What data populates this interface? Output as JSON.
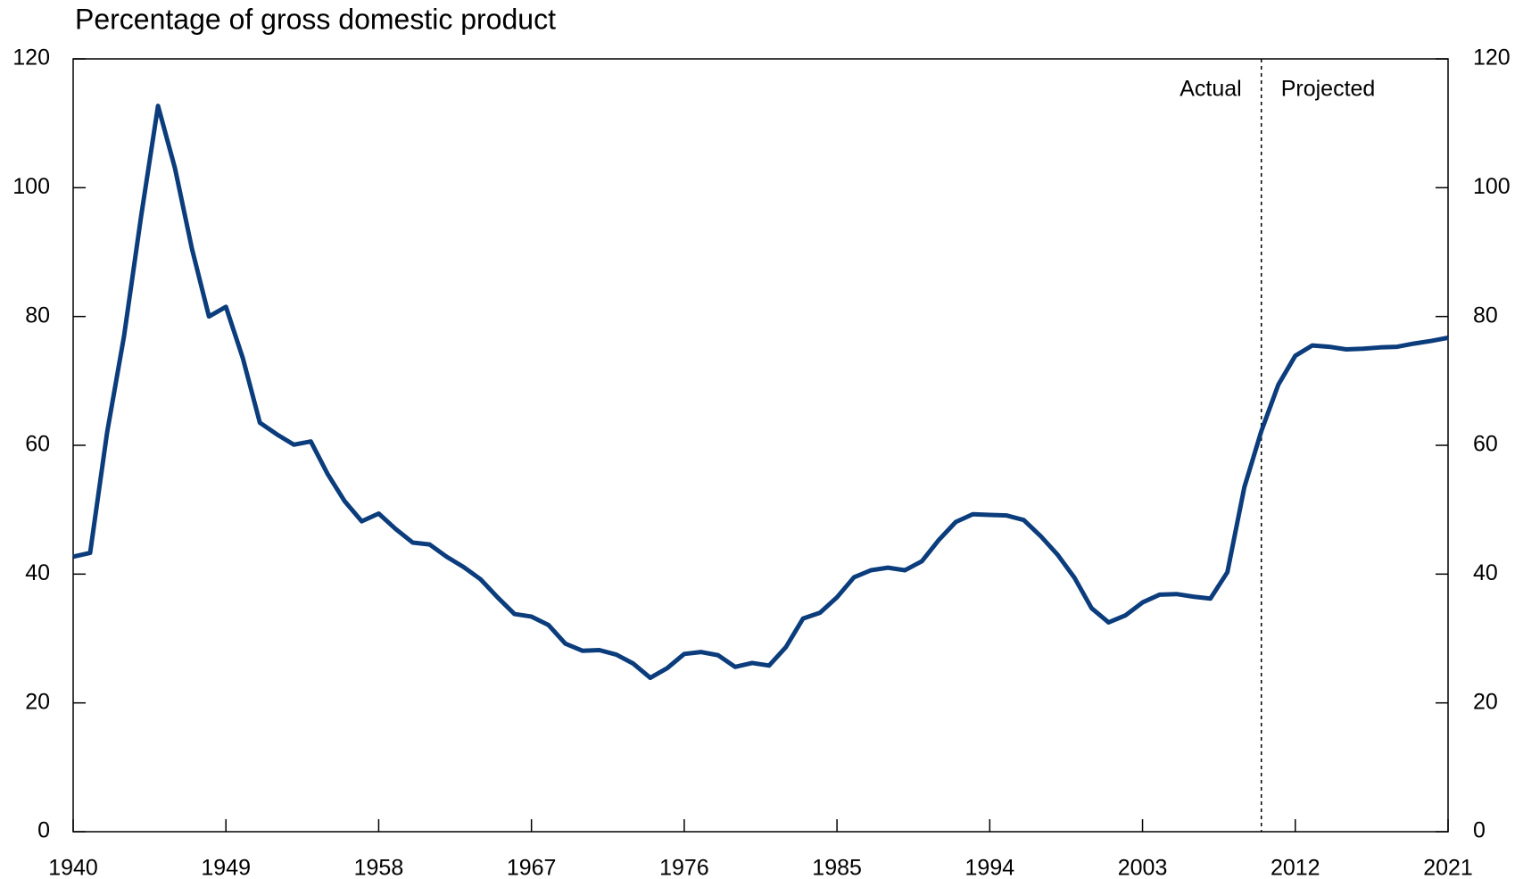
{
  "chart_data": {
    "type": "line",
    "title": "Percentage of gross domestic product",
    "x": [
      1940,
      1941,
      1942,
      1943,
      1944,
      1945,
      1946,
      1947,
      1948,
      1949,
      1950,
      1951,
      1952,
      1953,
      1954,
      1955,
      1956,
      1957,
      1958,
      1959,
      1960,
      1961,
      1962,
      1963,
      1964,
      1965,
      1966,
      1967,
      1968,
      1969,
      1970,
      1971,
      1972,
      1973,
      1974,
      1975,
      1976,
      1977,
      1978,
      1979,
      1980,
      1981,
      1982,
      1983,
      1984,
      1985,
      1986,
      1987,
      1988,
      1989,
      1990,
      1991,
      1992,
      1993,
      1994,
      1995,
      1996,
      1997,
      1998,
      1999,
      2000,
      2001,
      2002,
      2003,
      2004,
      2005,
      2006,
      2007,
      2008,
      2009,
      2010,
      2011,
      2012,
      2013,
      2014,
      2015,
      2016,
      2017,
      2018,
      2019,
      2020,
      2021
    ],
    "series": [
      {
        "color": "#0b3c7c",
        "values": [
          42.7,
          43.3,
          62,
          77,
          95.5,
          112.7,
          103,
          90.5,
          80,
          81.5,
          73.5,
          63.5,
          61.7,
          60.1,
          60.6,
          55.5,
          51.3,
          48.2,
          49.4,
          47,
          44.9,
          44.6,
          42.7,
          41.1,
          39.2,
          36.4,
          33.8,
          33.4,
          32.1,
          29.2,
          28.1,
          28.2,
          27.5,
          26.1,
          23.9,
          25.4,
          27.6,
          27.9,
          27.4,
          25.6,
          26.2,
          25.8,
          28.7,
          33.1,
          34.0,
          36.4,
          39.5,
          40.6,
          41.0,
          40.6,
          42.0,
          45.3,
          48.1,
          49.3,
          49.2,
          49.1,
          48.4,
          45.9,
          43.0,
          39.4,
          34.7,
          32.5,
          33.6,
          35.6,
          36.8,
          36.9,
          36.5,
          36.2,
          40.3,
          53.5,
          62.2,
          69.4,
          73.9,
          75.5,
          75.3,
          74.9,
          75.0,
          75.2,
          75.3,
          75.8,
          76.2,
          76.7
        ]
      }
    ],
    "xlim": [
      1940,
      2021
    ],
    "xticks": [
      1940,
      1949,
      1958,
      1967,
      1976,
      1985,
      1994,
      2003,
      2012,
      2021
    ],
    "ylim": [
      0,
      120
    ],
    "yticks": [
      0,
      20,
      40,
      60,
      80,
      100,
      120
    ],
    "y2lim": [
      0,
      120
    ],
    "y2ticks": [
      0,
      20,
      40,
      60,
      80,
      100,
      120
    ],
    "divider_x": 2010,
    "annotations": [
      "Actual",
      "Projected"
    ]
  }
}
